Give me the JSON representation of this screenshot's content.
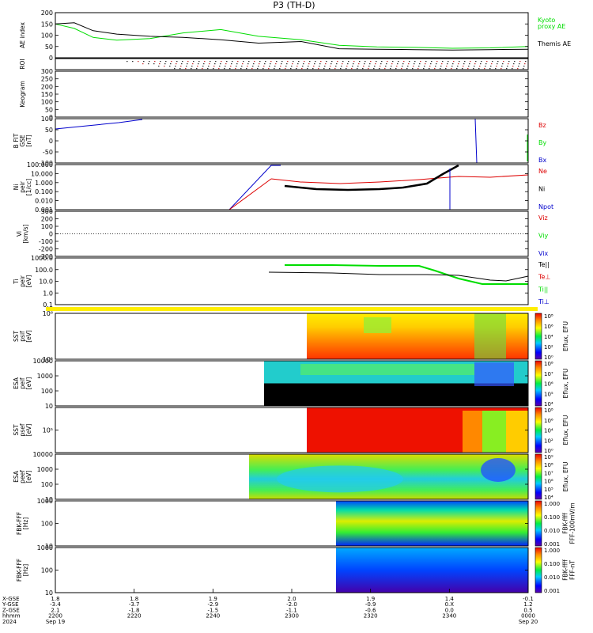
{
  "title": "P3 (TH-D)",
  "colors": {
    "black": "#000000",
    "green": "#00dd00",
    "red": "#dd0000",
    "blue": "#0000cc",
    "yellow": "#ffee00"
  },
  "chart_data": [
    {
      "type": "line",
      "ylabel": "AE index",
      "yticks": [
        "200",
        "150",
        "100",
        "50",
        "0"
      ],
      "ylim": [
        0,
        200
      ],
      "x": [
        0,
        0.04,
        0.08,
        0.13,
        0.2,
        0.27,
        0.35,
        0.43,
        0.52,
        0.6,
        0.68,
        0.76,
        0.84,
        0.92,
        1.0
      ],
      "series": [
        {
          "name": "Kyoto\nproxy AE",
          "color": "#00dd00",
          "values": [
            150,
            130,
            90,
            78,
            85,
            110,
            125,
            95,
            80,
            55,
            48,
            46,
            42,
            44,
            50
          ]
        },
        {
          "name": "Themis AE",
          "color": "#000000",
          "values": [
            150,
            155,
            120,
            105,
            95,
            90,
            80,
            65,
            72,
            40,
            38,
            36,
            34,
            36,
            38
          ]
        }
      ]
    },
    {
      "type": "dotted",
      "ylabel": "ROI"
    },
    {
      "type": "blank",
      "ylabel": "Keogram",
      "yticks": [
        "300",
        "250",
        "200",
        "150",
        "100",
        "50",
        "0"
      ]
    },
    {
      "type": "line",
      "ylabel": "B FIT\nGSE\n[nT]",
      "yticks": [
        "100",
        "50",
        "0",
        "-50",
        "-100"
      ],
      "ylim": [
        -100,
        100
      ],
      "series": [
        {
          "name": "Bz",
          "color": "#dd0000"
        },
        {
          "name": "By",
          "color": "#00dd00"
        },
        {
          "name": "Bx",
          "color": "#0000cc"
        }
      ]
    },
    {
      "type": "line",
      "ylabel": "Ni\npeir\n[1/cc]",
      "yticks": [
        "100.000",
        "10.000",
        "1.000",
        "0.100",
        "0.010",
        "0.001"
      ],
      "series": [
        {
          "name": "Ne",
          "color": "#dd0000"
        },
        {
          "name": "Ni",
          "color": "#000000"
        },
        {
          "name": "Npot",
          "color": "#0000cc"
        }
      ]
    },
    {
      "type": "line",
      "ylabel": "Vi\n[km/s]",
      "yticks": [
        "300",
        "200",
        "100",
        "0",
        "-100",
        "-200",
        "-300"
      ],
      "ylim": [
        -300,
        300
      ],
      "series": [
        {
          "name": "Viz",
          "color": "#dd0000"
        },
        {
          "name": "Viy",
          "color": "#00dd00"
        },
        {
          "name": "Vix",
          "color": "#0000cc"
        }
      ]
    },
    {
      "type": "line",
      "ylabel": "Ti\npeir\n[eV]",
      "yticks": [
        "1000.0",
        "100.0",
        "10.0",
        "1.0",
        "0.1"
      ],
      "series": [
        {
          "name": "Te||",
          "color": "#000000"
        },
        {
          "name": "Te⊥",
          "color": "#dd0000"
        },
        {
          "name": "Ti||",
          "color": "#00dd00"
        },
        {
          "name": "Ti⊥",
          "color": "#0000cc"
        }
      ]
    },
    {
      "type": "heatmap",
      "ylabel": "SST\npsif\n[eV]",
      "yticks": [
        "10⁶",
        "10⁵"
      ],
      "colorbar_label": "Eflux, EFU",
      "colorbar_ticks": [
        "10⁸",
        "10⁶",
        "10⁴",
        "10²",
        "10⁰"
      ]
    },
    {
      "type": "heatmap",
      "ylabel": "ESA\npeif\n[eV]",
      "yticks": [
        "10000",
        "1000",
        "100",
        "10"
      ],
      "colorbar_label": "Eflux, EFU",
      "colorbar_ticks": [
        "10⁸",
        "10⁷",
        "10⁶",
        "10⁵",
        "10⁴"
      ]
    },
    {
      "type": "heatmap",
      "ylabel": "SST\npsef\n[eV]",
      "yticks": [
        "10⁵"
      ],
      "colorbar_label": "Eflux, EFU",
      "colorbar_ticks": [
        "10⁸",
        "10⁶",
        "10⁴",
        "10²",
        "10⁰"
      ]
    },
    {
      "type": "heatmap",
      "ylabel": "ESA\npeef\n[eV]",
      "yticks": [
        "10000",
        "1000",
        "100",
        "10"
      ],
      "colorbar_label": "Eflux, EFU",
      "colorbar_ticks": [
        "10⁹",
        "10⁸",
        "10⁷",
        "10⁶",
        "10⁵",
        "10⁴"
      ]
    },
    {
      "type": "heatmap",
      "ylabel": "FBK-FFF\n[Hz]",
      "yticks": [
        "1000",
        "100",
        "10"
      ],
      "colorbar_label": "FBK-ffff\nFFF-100mV/m",
      "colorbar_ticks": [
        "1.000",
        "0.100",
        "0.010",
        "0.001"
      ]
    },
    {
      "type": "heatmap",
      "ylabel": "FBK-FFF\n[Hz]",
      "yticks": [
        "1000",
        "100",
        "10"
      ],
      "colorbar_label": "FBK-ffff\nFFF-nT",
      "colorbar_ticks": [
        "1.000",
        "0.100",
        "0.010",
        "0.001"
      ]
    }
  ],
  "xaxis": {
    "row_labels": [
      "X-GSE",
      "Y-GSE",
      "Z-GSE",
      "hhmm",
      "2024"
    ],
    "ticks": [
      {
        "rows": [
          "1.8",
          "-3.4",
          "2.1",
          "2200",
          "Sep 19"
        ]
      },
      {
        "rows": [
          "1.8",
          "-3.7",
          "-1.8",
          "2220",
          ""
        ]
      },
      {
        "rows": [
          "1.9",
          "-2.9",
          "-1.5",
          "2240",
          ""
        ]
      },
      {
        "rows": [
          "2.0",
          "-2.0",
          "-1.1",
          "2300",
          ""
        ]
      },
      {
        "rows": [
          "1.9",
          "-0.9",
          "-0.6",
          "2320",
          ""
        ]
      },
      {
        "rows": [
          "1.4",
          "0.X",
          "0.0",
          "2340",
          ""
        ]
      },
      {
        "rows": [
          "-0.1",
          "1.2",
          "0.5",
          "0000",
          "Sep 20"
        ]
      }
    ]
  }
}
